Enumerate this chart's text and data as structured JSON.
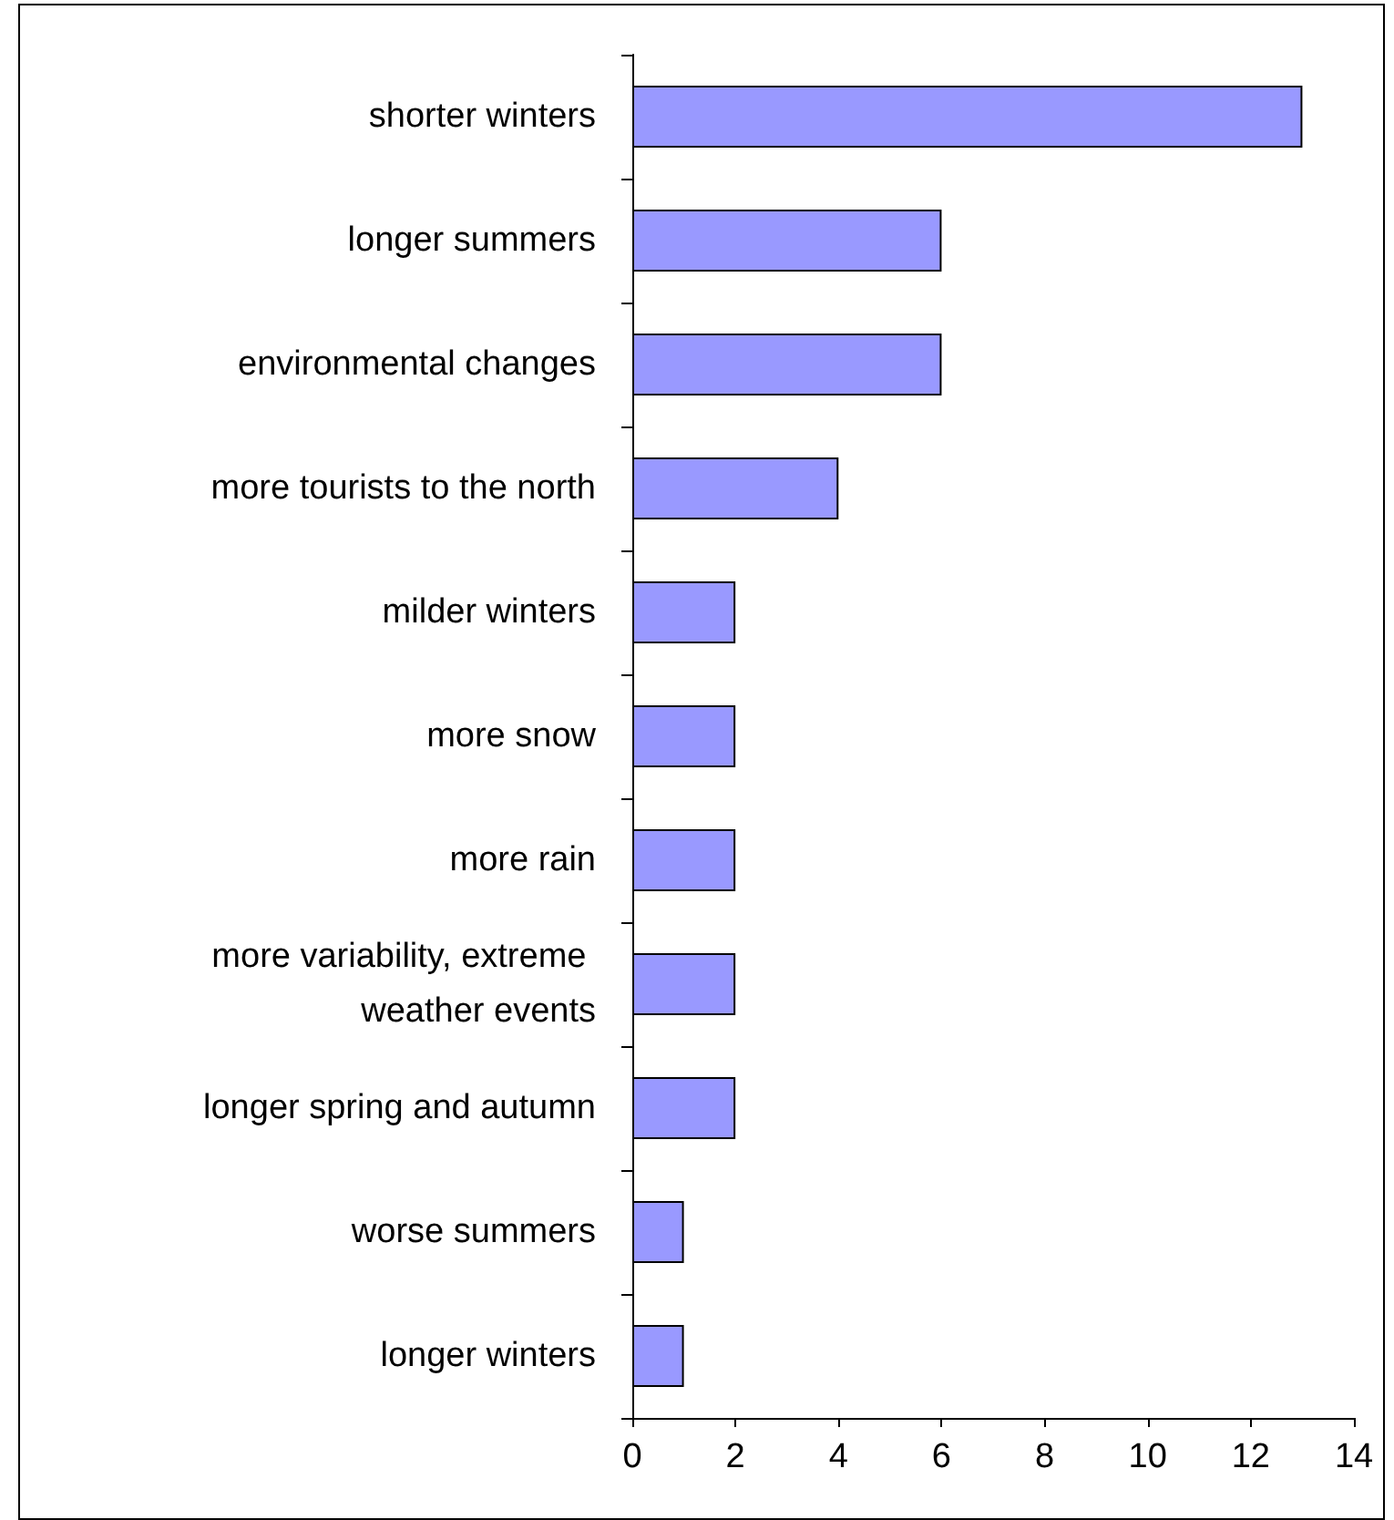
{
  "chart_data": {
    "type": "bar",
    "orientation": "horizontal",
    "categories": [
      "shorter winters",
      "longer summers",
      "environmental changes",
      "more tourists to the north",
      "milder winters",
      "more snow",
      "more rain",
      "more variability, extreme weather events",
      "longer spring and autumn",
      "worse summers",
      "longer winters"
    ],
    "values": [
      13,
      6,
      6,
      4,
      2,
      2,
      2,
      2,
      2,
      1,
      1
    ],
    "color": "#9999ff",
    "xlim": [
      0,
      14
    ],
    "xticks": [
      0,
      2,
      4,
      6,
      8,
      10,
      12,
      14
    ],
    "grid": false
  }
}
